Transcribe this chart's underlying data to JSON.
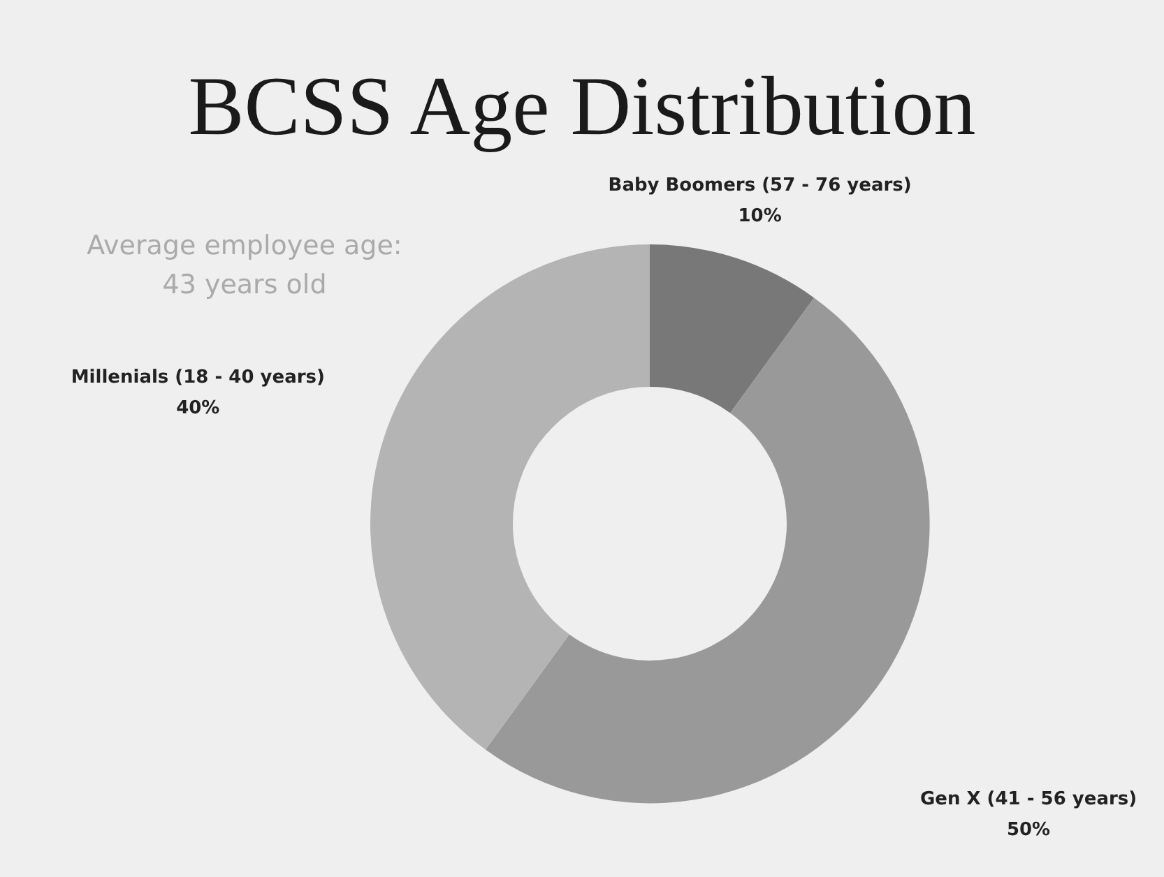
{
  "chart_data": {
    "type": "donut",
    "title": "BCSS Age Distribution",
    "categories": [
      "Baby Boomers (57 - 76 years)",
      "Gen X (41 - 56 years)",
      "Millenials (18 - 40 years)"
    ],
    "values": [
      10,
      50,
      40
    ],
    "value_labels": [
      "10%",
      "50%",
      "40%"
    ],
    "colors": [
      "#787878",
      "#999999",
      "#b4b4b4"
    ],
    "annotations": [
      "Average employee age:\n43 years old"
    ]
  }
}
